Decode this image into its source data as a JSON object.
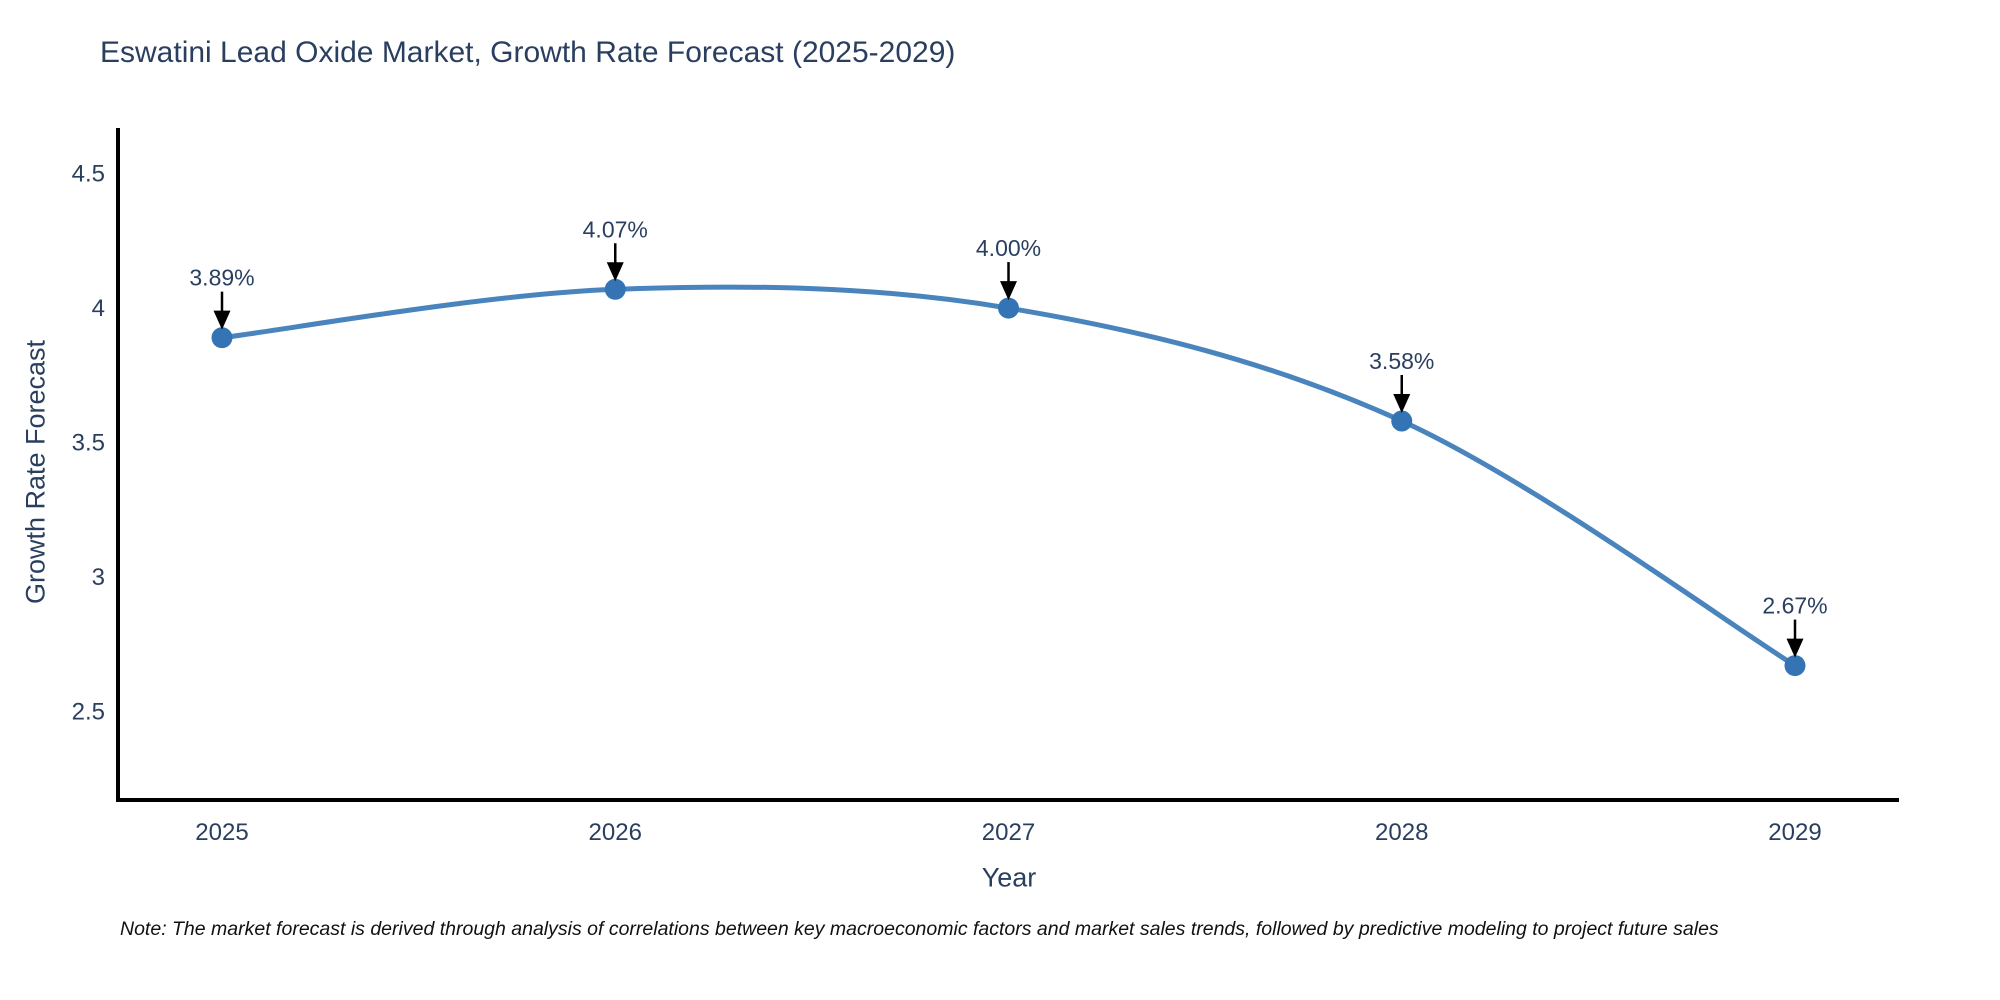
{
  "title": "Eswatini Lead Oxide Market, Growth Rate Forecast (2025-2029)",
  "note": "Note: The market forecast is derived through analysis of correlations between key macroeconomic factors and market sales trends, followed by predictive modeling to project future sales",
  "chart_data": {
    "type": "line",
    "title": "Eswatini Lead Oxide Market, Growth Rate Forecast (2025-2029)",
    "xlabel": "Year",
    "ylabel": "Growth Rate Forecast",
    "x": [
      2025,
      2026,
      2027,
      2028,
      2029
    ],
    "values": [
      3.89,
      4.07,
      4.0,
      3.58,
      2.67
    ],
    "point_labels": [
      "3.89%",
      "4.07%",
      "4.00%",
      "3.58%",
      "2.67%"
    ],
    "xtick_labels": [
      "2025",
      "2026",
      "2027",
      "2028",
      "2029"
    ],
    "yticks": [
      2.5,
      3,
      3.5,
      4,
      4.5
    ],
    "ytick_labels": [
      "2.5",
      "3",
      "3.5",
      "4",
      "4.5"
    ],
    "ylim": [
      2.17,
      4.67
    ],
    "line_shape": "spline",
    "grid": false,
    "legend_position": "none",
    "line_color": "#4a84bd",
    "marker_color": "#3474b5",
    "arrow_color": "#000000",
    "text_color": "#2a3f5f",
    "axis_color": "#000000"
  }
}
